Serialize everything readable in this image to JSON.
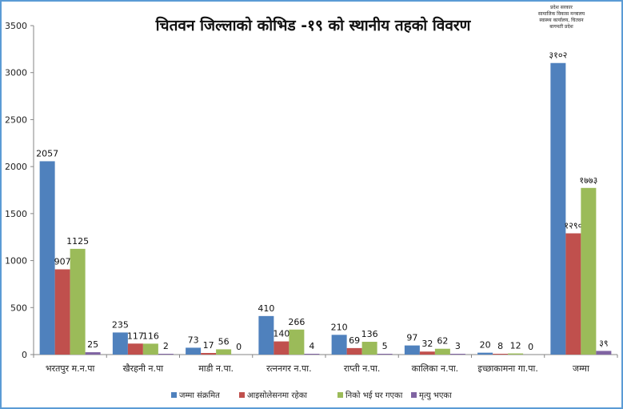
{
  "chart_data": {
    "type": "bar",
    "title": "चितवन जिल्लाको कोभिड -१९ को स्थानीय तहको विवरण",
    "xlabel": "",
    "ylabel": "",
    "ylim": [
      0,
      3500
    ],
    "yticks": [
      0,
      500,
      1000,
      1500,
      2000,
      2500,
      3000,
      3500
    ],
    "grid": false,
    "legend_position": "bottom",
    "categories": [
      "भरतपुर म.न.पा",
      "खैरहनी न.पा",
      "माडी न.पा.",
      "रत्ननगर न.पा.",
      "राप्ती न.पा.",
      "कालिका न.पा.",
      "इच्छाकामना गा.पा.",
      "जम्मा"
    ],
    "series": [
      {
        "name": "जम्मा संक्रमित",
        "color": "#4f81bd",
        "values": [
          2057,
          235,
          73,
          410,
          210,
          97,
          20,
          3102
        ],
        "labels": [
          "2057",
          "235",
          "73",
          "410",
          "210",
          "97",
          "20",
          "३१०२"
        ]
      },
      {
        "name": "आइसोलेसनमा रहेका",
        "color": "#c0504d",
        "values": [
          907,
          117,
          17,
          140,
          69,
          32,
          8,
          1290
        ],
        "labels": [
          "907",
          "117",
          "17",
          "140",
          "69",
          "32",
          "8",
          "१२९०"
        ]
      },
      {
        "name": "निको भई घर गएका",
        "color": "#9bbb59",
        "values": [
          1125,
          116,
          56,
          266,
          136,
          62,
          12,
          1773
        ],
        "labels": [
          "1125",
          "116",
          "56",
          "266",
          "136",
          "62",
          "12",
          "१७७३"
        ]
      },
      {
        "name": "मृत्यु भएका",
        "color": "#8064a2",
        "values": [
          25,
          2,
          0,
          4,
          5,
          3,
          0,
          39
        ],
        "labels": [
          "25",
          "2",
          "0",
          "4",
          "5",
          "3",
          "0",
          "३९"
        ]
      }
    ]
  },
  "header": {
    "org_lines": [
      "प्रदेश सरकार",
      "सामाजिक विकास मन्त्रालय",
      "स्वास्थ्य कार्यालय, चितवन",
      "बागमती प्रदेश"
    ]
  }
}
